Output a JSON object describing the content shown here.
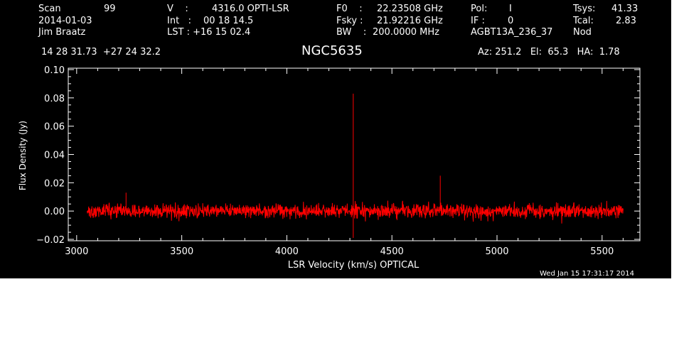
{
  "header": {
    "scan_label": "Scan",
    "scan_value": "99",
    "date": "2014-01-03",
    "observer": "Jim Braatz",
    "v_label": "V    :",
    "v_value": "4316.0 OPTI-LSR",
    "int_label": "Int   :",
    "int_value": "00 18 14.5",
    "lst_label": "LST : +16 15 02.4",
    "f0_label": "F0    :",
    "f0_value": "22.23508 GHz",
    "fsky_label": "Fsky :",
    "fsky_value": "21.92216 GHz",
    "bw_label": "BW    :",
    "bw_value": "200.0000 MHz",
    "pol_label": "Pol:",
    "pol_value": "I",
    "if_label": "IF :",
    "if_value": "0",
    "project": "AGBT13A_236_37",
    "tsys_label": "Tsys:",
    "tsys_value": "41.33",
    "tcal_label": "Tcal:",
    "tcal_value": "2.83",
    "mode": "Nod",
    "coords": "14 28 31.73  +27 24 32.2",
    "source": "NGC5635",
    "az_el_ha": "Az: 251.2   El:  65.3   HA:  1.78"
  },
  "footer": {
    "timestamp": "Wed Jan 15 17:31:17 2014"
  },
  "colors": {
    "background": "#000000",
    "axes": "#ffffff",
    "series": "#ff0000"
  },
  "chart_data": {
    "type": "line",
    "xlabel": "LSR Velocity (km/s) OPTICAL",
    "ylabel": "Flux Density (Jy)",
    "xlim": [
      2960,
      5680
    ],
    "ylim": [
      -0.021,
      0.101
    ],
    "xticks": [
      3000,
      3500,
      4000,
      4500,
      5000,
      5500
    ],
    "yticks": [
      -0.02,
      0.0,
      0.02,
      0.04,
      0.06,
      0.08,
      0.1
    ],
    "xtick_labels": [
      "3000",
      "3500",
      "4000",
      "4500",
      "5000",
      "5500"
    ],
    "ytick_labels": [
      "−0.02",
      "0.00",
      "0.02",
      "0.04",
      "0.06",
      "0.08",
      "0.10"
    ],
    "grid": false,
    "series": [
      {
        "x_range": [
          3050,
          5600
        ],
        "noise_rms": 0.0035,
        "features": [
          {
            "x": 4316,
            "y": 0.083
          },
          {
            "x": 4316,
            "y": -0.019
          },
          {
            "x": 4730,
            "y": 0.025
          },
          {
            "x": 3235,
            "y": 0.013
          }
        ]
      }
    ]
  }
}
